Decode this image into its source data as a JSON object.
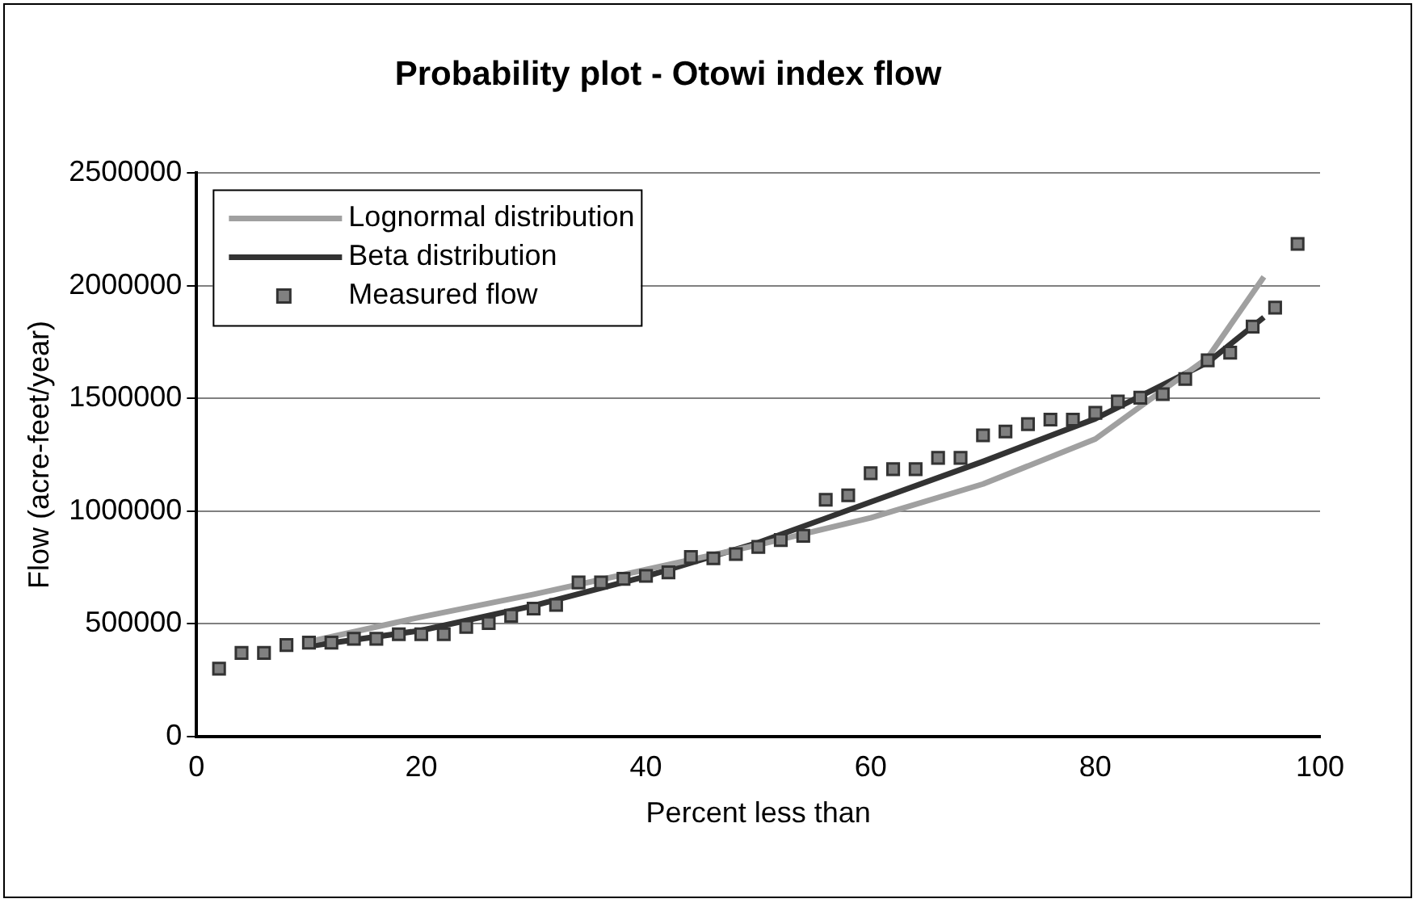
{
  "chart_data": {
    "type": "scatter",
    "title": "Probability plot - Otowi index flow",
    "xlabel": "Percent less than",
    "ylabel": "Flow (acre-feet/year)",
    "xlim": [
      0,
      100
    ],
    "xticks": [
      0,
      20,
      40,
      60,
      80,
      100
    ],
    "ylim": [
      0,
      2500000
    ],
    "yticks": [
      0,
      500000,
      1000000,
      1500000,
      2000000,
      2500000
    ],
    "grid": "y",
    "legend": "top left",
    "series": [
      {
        "name": "Lognormal distribution",
        "type": "line",
        "color": "#a0a0a0",
        "marker": "none",
        "x": [
          10,
          20,
          30,
          40,
          50,
          60,
          70,
          80,
          90,
          95
        ],
        "values": [
          420000,
          530000,
          630000,
          740000,
          850000,
          970000,
          1120000,
          1320000,
          1680000,
          2040000
        ]
      },
      {
        "name": "Beta distribution",
        "type": "line",
        "color": "#333333",
        "marker": "none",
        "x": [
          10,
          20,
          30,
          40,
          50,
          60,
          70,
          80,
          90,
          95
        ],
        "values": [
          400000,
          470000,
          580000,
          710000,
          860000,
          1040000,
          1220000,
          1410000,
          1660000,
          1860000
        ]
      },
      {
        "name": "Measured flow",
        "color": "#808080",
        "marker": "square",
        "x": [
          2,
          4,
          6,
          8,
          10,
          12,
          14,
          16,
          18,
          20,
          22,
          24,
          26,
          28,
          30,
          32,
          34,
          36,
          38,
          40,
          42,
          44,
          46,
          48,
          50,
          52,
          54,
          56,
          58,
          60,
          62,
          64,
          66,
          68,
          70,
          72,
          74,
          76,
          78,
          80,
          82,
          84,
          86,
          88,
          90,
          92,
          94,
          96,
          98
        ],
        "values": [
          300000,
          370000,
          370000,
          405000,
          416000,
          416000,
          433000,
          433000,
          453000,
          453000,
          453000,
          486000,
          503000,
          535000,
          567000,
          583000,
          683000,
          683000,
          699000,
          712000,
          728000,
          796000,
          790000,
          809000,
          841000,
          871000,
          890000,
          1050000,
          1070000,
          1168000,
          1186000,
          1186000,
          1236000,
          1236000,
          1336000,
          1353000,
          1386000,
          1406000,
          1406000,
          1436000,
          1486000,
          1503000,
          1519000,
          1586000,
          1669000,
          1703000,
          1819000,
          1903000,
          2186000
        ]
      }
    ]
  }
}
